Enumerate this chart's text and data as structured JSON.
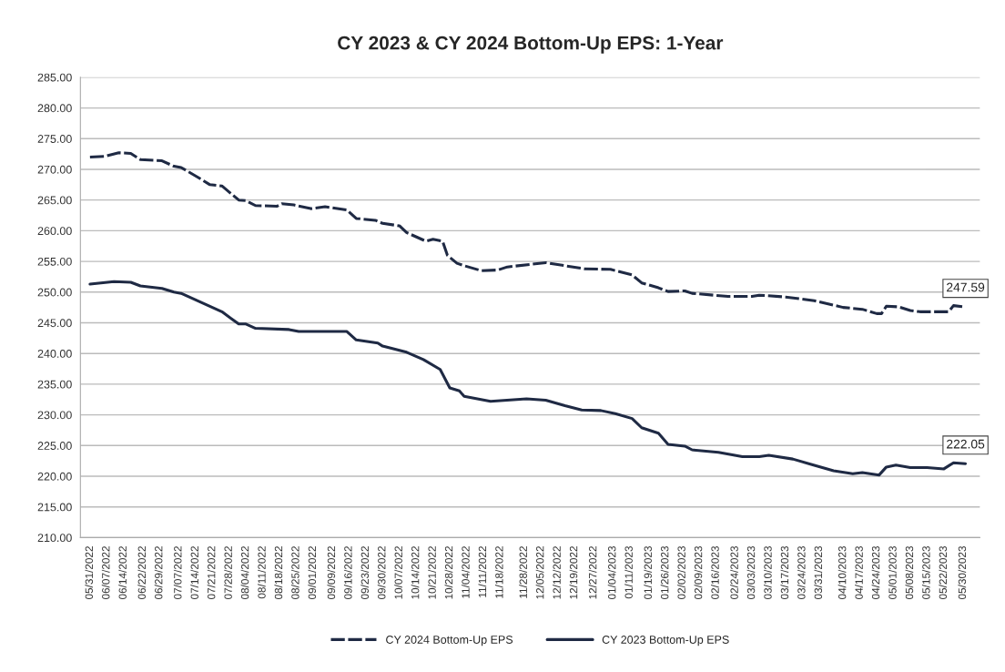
{
  "chart_data": {
    "type": "line",
    "title": "CY 2023 & CY 2024 Bottom-Up EPS: 1-Year",
    "series": [
      {
        "name": "CY 2024 Bottom-Up EPS",
        "color": "#1f2a44",
        "line_style": "dashed",
        "x": [
          "2022-05-31",
          "2022-06-06",
          "2022-06-12",
          "2022-06-17",
          "2022-06-21",
          "2022-06-30",
          "2022-07-05",
          "2022-07-08",
          "2022-07-15",
          "2022-07-20",
          "2022-07-25",
          "2022-08-01",
          "2022-08-04",
          "2022-08-08",
          "2022-08-17",
          "2022-08-19",
          "2022-08-24",
          "2022-08-31",
          "2022-09-06",
          "2022-09-15",
          "2022-09-19",
          "2022-09-27",
          "2022-09-30",
          "2022-10-07",
          "2022-10-10",
          "2022-10-18",
          "2022-10-21",
          "2022-10-25",
          "2022-10-27",
          "2022-10-31",
          "2022-11-03",
          "2022-11-10",
          "2022-11-17",
          "2022-11-21",
          "2022-12-07",
          "2022-12-23",
          "2023-01-03",
          "2023-01-12",
          "2023-01-16",
          "2023-01-23",
          "2023-01-27",
          "2023-02-03",
          "2023-02-06",
          "2023-02-21",
          "2023-03-03",
          "2023-03-06",
          "2023-03-17",
          "2023-03-29",
          "2023-04-10",
          "2023-04-18",
          "2023-04-24",
          "2023-04-26",
          "2023-04-28",
          "2023-05-03",
          "2023-05-08",
          "2023-05-12",
          "2023-05-24",
          "2023-05-26",
          "2023-05-31"
        ],
        "values": [
          272.0,
          272.1,
          272.7,
          272.6,
          271.6,
          271.4,
          270.5,
          270.3,
          268.7,
          267.5,
          267.3,
          265.0,
          264.9,
          264.1,
          264.0,
          264.4,
          264.2,
          263.6,
          263.9,
          263.4,
          262.0,
          261.7,
          261.2,
          260.8,
          259.7,
          258.3,
          258.6,
          258.3,
          256.0,
          254.7,
          254.3,
          253.5,
          253.6,
          254.1,
          254.8,
          253.8,
          253.7,
          252.8,
          251.5,
          250.7,
          250.1,
          250.2,
          249.8,
          249.3,
          249.3,
          249.5,
          249.2,
          248.6,
          247.5,
          247.2,
          246.5,
          246.5,
          247.7,
          247.6,
          247.0,
          246.8,
          246.8,
          247.8,
          247.59
        ]
      },
      {
        "name": "CY 2023 Bottom-Up EPS",
        "color": "#1f2a44",
        "line_style": "solid",
        "x": [
          "2022-05-31",
          "2022-06-10",
          "2022-06-17",
          "2022-06-21",
          "2022-06-30",
          "2022-07-05",
          "2022-07-08",
          "2022-07-25",
          "2022-08-01",
          "2022-08-04",
          "2022-08-08",
          "2022-08-22",
          "2022-08-26",
          "2022-09-15",
          "2022-09-19",
          "2022-09-28",
          "2022-09-30",
          "2022-10-10",
          "2022-10-17",
          "2022-10-24",
          "2022-10-28",
          "2022-11-01",
          "2022-11-03",
          "2022-11-14",
          "2022-11-29",
          "2022-12-07",
          "2022-12-15",
          "2022-12-22",
          "2022-12-30",
          "2023-01-05",
          "2023-01-12",
          "2023-01-16",
          "2023-01-23",
          "2023-01-27",
          "2023-02-03",
          "2023-02-06",
          "2023-02-17",
          "2023-02-27",
          "2023-03-06",
          "2023-03-10",
          "2023-03-20",
          "2023-03-28",
          "2023-04-06",
          "2023-04-14",
          "2023-04-18",
          "2023-04-25",
          "2023-04-28",
          "2023-05-02",
          "2023-05-08",
          "2023-05-15",
          "2023-05-22",
          "2023-05-26",
          "2023-05-31"
        ],
        "values": [
          251.3,
          251.7,
          251.6,
          251.0,
          250.6,
          250.0,
          249.8,
          246.8,
          244.8,
          244.8,
          244.1,
          243.9,
          243.6,
          243.6,
          242.2,
          241.7,
          241.2,
          240.2,
          239.0,
          237.4,
          234.4,
          233.9,
          233.0,
          232.2,
          232.6,
          232.4,
          231.5,
          230.8,
          230.7,
          230.2,
          229.4,
          227.9,
          227.0,
          225.2,
          224.9,
          224.3,
          223.9,
          223.2,
          223.2,
          223.4,
          222.8,
          221.9,
          220.9,
          220.4,
          220.6,
          220.2,
          221.5,
          221.8,
          221.4,
          221.4,
          221.2,
          222.2,
          222.05
        ]
      }
    ],
    "annotations": [
      {
        "text": "247.59",
        "x": "2023-05-31",
        "y": 247.59
      },
      {
        "text": "222.05",
        "x": "2023-05-31",
        "y": 222.05
      }
    ],
    "xlim": [
      "2022-05-27",
      "2023-06-06"
    ],
    "xticks": [
      {
        "value": "2022-05-31",
        "label": "05/31/2022"
      },
      {
        "value": "2022-06-07",
        "label": "06/07/2022"
      },
      {
        "value": "2022-06-14",
        "label": "06/14/2022"
      },
      {
        "value": "2022-06-22",
        "label": "06/22/2022"
      },
      {
        "value": "2022-06-29",
        "label": "06/29/2022"
      },
      {
        "value": "2022-07-07",
        "label": "07/07/2022"
      },
      {
        "value": "2022-07-14",
        "label": "07/14/2022"
      },
      {
        "value": "2022-07-21",
        "label": "07/21/2022"
      },
      {
        "value": "2022-07-28",
        "label": "07/28/2022"
      },
      {
        "value": "2022-08-04",
        "label": "08/04/2022"
      },
      {
        "value": "2022-08-11",
        "label": "08/11/2022"
      },
      {
        "value": "2022-08-18",
        "label": "08/18/2022"
      },
      {
        "value": "2022-08-25",
        "label": "08/25/2022"
      },
      {
        "value": "2022-09-01",
        "label": "09/01/2022"
      },
      {
        "value": "2022-09-09",
        "label": "09/09/2022"
      },
      {
        "value": "2022-09-16",
        "label": "09/16/2022"
      },
      {
        "value": "2022-09-23",
        "label": "09/23/2022"
      },
      {
        "value": "2022-09-30",
        "label": "09/30/2022"
      },
      {
        "value": "2022-10-07",
        "label": "10/07/2022"
      },
      {
        "value": "2022-10-14",
        "label": "10/14/2022"
      },
      {
        "value": "2022-10-21",
        "label": "10/21/2022"
      },
      {
        "value": "2022-10-28",
        "label": "10/28/2022"
      },
      {
        "value": "2022-11-04",
        "label": "11/04/2022"
      },
      {
        "value": "2022-11-11",
        "label": "11/11/2022"
      },
      {
        "value": "2022-11-18",
        "label": "11/18/2022"
      },
      {
        "value": "2022-11-28",
        "label": "11/28/2022"
      },
      {
        "value": "2022-12-05",
        "label": "12/05/2022"
      },
      {
        "value": "2022-12-12",
        "label": "12/12/2022"
      },
      {
        "value": "2022-12-19",
        "label": "12/19/2022"
      },
      {
        "value": "2022-12-27",
        "label": "12/27/2022"
      },
      {
        "value": "2023-01-04",
        "label": "01/04/2023"
      },
      {
        "value": "2023-01-11",
        "label": "01/11/2023"
      },
      {
        "value": "2023-01-19",
        "label": "01/19/2023"
      },
      {
        "value": "2023-01-26",
        "label": "01/26/2023"
      },
      {
        "value": "2023-02-02",
        "label": "02/02/2023"
      },
      {
        "value": "2023-02-09",
        "label": "02/09/2023"
      },
      {
        "value": "2023-02-16",
        "label": "02/16/2023"
      },
      {
        "value": "2023-02-24",
        "label": "02/24/2023"
      },
      {
        "value": "2023-03-03",
        "label": "03/03/2023"
      },
      {
        "value": "2023-03-10",
        "label": "03/10/2023"
      },
      {
        "value": "2023-03-17",
        "label": "03/17/2023"
      },
      {
        "value": "2023-03-24",
        "label": "03/24/2023"
      },
      {
        "value": "2023-03-31",
        "label": "03/31/2023"
      },
      {
        "value": "2023-04-10",
        "label": "04/10/2023"
      },
      {
        "value": "2023-04-17",
        "label": "04/17/2023"
      },
      {
        "value": "2023-04-24",
        "label": "04/24/2023"
      },
      {
        "value": "2023-05-01",
        "label": "05/01/2023"
      },
      {
        "value": "2023-05-08",
        "label": "05/08/2023"
      },
      {
        "value": "2023-05-15",
        "label": "05/15/2023"
      },
      {
        "value": "2023-05-22",
        "label": "05/22/2023"
      },
      {
        "value": "2023-05-30",
        "label": "05/30/2023"
      }
    ],
    "ylim": [
      210,
      285
    ],
    "yticks": [
      {
        "value": 210,
        "label": "210.00"
      },
      {
        "value": 215,
        "label": "215.00"
      },
      {
        "value": 220,
        "label": "220.00"
      },
      {
        "value": 225,
        "label": "225.00"
      },
      {
        "value": 230,
        "label": "230.00"
      },
      {
        "value": 235,
        "label": "235.00"
      },
      {
        "value": 240,
        "label": "240.00"
      },
      {
        "value": 245,
        "label": "245.00"
      },
      {
        "value": 250,
        "label": "250.00"
      },
      {
        "value": 255,
        "label": "255.00"
      },
      {
        "value": 260,
        "label": "260.00"
      },
      {
        "value": 265,
        "label": "265.00"
      },
      {
        "value": 270,
        "label": "270.00"
      },
      {
        "value": 275,
        "label": "275.00"
      },
      {
        "value": 280,
        "label": "280.00"
      },
      {
        "value": 285,
        "label": "285.00"
      }
    ],
    "grid": "y",
    "legend": "bottom"
  }
}
